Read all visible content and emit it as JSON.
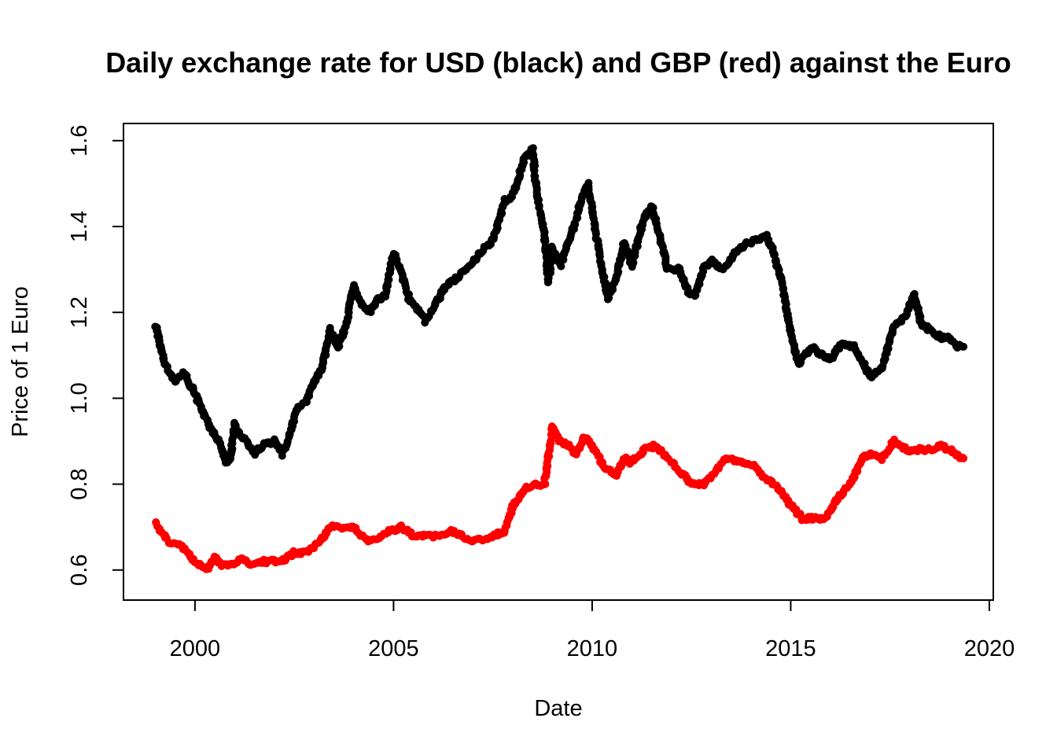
{
  "chart_data": {
    "type": "scatter",
    "title": "Daily exchange rate for USD (black) and GBP (red) against the Euro",
    "xlabel": "Date",
    "ylabel": "Price of 1 Euro",
    "xlim": [
      1998.2,
      2020.1
    ],
    "ylim": [
      0.53,
      1.64
    ],
    "x_ticks": [
      2000,
      2005,
      2010,
      2015,
      2020
    ],
    "x_tick_labels": [
      "2000",
      "2005",
      "2010",
      "2015",
      "2020"
    ],
    "y_ticks": [
      0.6,
      0.8,
      1.0,
      1.2,
      1.4,
      1.6
    ],
    "y_tick_labels": [
      "0.6",
      "0.8",
      "1.0",
      "1.2",
      "1.4",
      "1.6"
    ],
    "grid": false,
    "legend": "none",
    "series": [
      {
        "color": "#000000",
        "x": [
          1999.0,
          1999.1,
          1999.2,
          1999.3,
          1999.5,
          1999.7,
          1999.9,
          2000.0,
          2000.2,
          2000.3,
          2000.4,
          2000.6,
          2000.8,
          2000.9,
          2001.0,
          2001.1,
          2001.3,
          2001.5,
          2001.7,
          2002.0,
          2002.2,
          2002.4,
          2002.6,
          2002.8,
          2003.0,
          2003.2,
          2003.4,
          2003.6,
          2003.8,
          2004.0,
          2004.2,
          2004.4,
          2004.6,
          2004.8,
          2005.0,
          2005.2,
          2005.4,
          2005.6,
          2005.8,
          2006.0,
          2006.3,
          2006.6,
          2006.9,
          2007.2,
          2007.5,
          2007.8,
          2008.0,
          2008.3,
          2008.5,
          2008.6,
          2008.8,
          2008.9,
          2009.0,
          2009.2,
          2009.5,
          2009.8,
          2009.9,
          2010.1,
          2010.4,
          2010.6,
          2010.8,
          2011.0,
          2011.3,
          2011.5,
          2011.7,
          2011.9,
          2012.2,
          2012.4,
          2012.6,
          2012.8,
          2013.0,
          2013.3,
          2013.6,
          2013.9,
          2014.2,
          2014.4,
          2014.6,
          2014.8,
          2015.0,
          2015.2,
          2015.5,
          2015.8,
          2016.0,
          2016.3,
          2016.6,
          2016.9,
          2017.0,
          2017.3,
          2017.6,
          2017.9,
          2018.1,
          2018.3,
          2018.5,
          2018.8,
          2019.0,
          2019.2,
          2019.35
        ],
        "y": [
          1.17,
          1.14,
          1.09,
          1.07,
          1.04,
          1.06,
          1.03,
          1.01,
          0.97,
          0.95,
          0.93,
          0.9,
          0.85,
          0.86,
          0.94,
          0.92,
          0.9,
          0.87,
          0.89,
          0.9,
          0.87,
          0.92,
          0.98,
          0.99,
          1.04,
          1.07,
          1.16,
          1.12,
          1.17,
          1.26,
          1.22,
          1.2,
          1.23,
          1.24,
          1.34,
          1.29,
          1.23,
          1.21,
          1.18,
          1.21,
          1.26,
          1.28,
          1.31,
          1.34,
          1.37,
          1.46,
          1.47,
          1.56,
          1.58,
          1.48,
          1.38,
          1.27,
          1.35,
          1.31,
          1.39,
          1.48,
          1.5,
          1.38,
          1.23,
          1.28,
          1.36,
          1.31,
          1.42,
          1.45,
          1.38,
          1.3,
          1.3,
          1.25,
          1.24,
          1.3,
          1.32,
          1.3,
          1.34,
          1.36,
          1.37,
          1.38,
          1.33,
          1.26,
          1.15,
          1.08,
          1.12,
          1.1,
          1.09,
          1.13,
          1.12,
          1.07,
          1.05,
          1.07,
          1.17,
          1.19,
          1.24,
          1.17,
          1.16,
          1.14,
          1.14,
          1.12,
          1.12
        ]
      },
      {
        "color": "#ff0000",
        "x": [
          1999.0,
          1999.2,
          1999.4,
          1999.6,
          1999.8,
          2000.0,
          2000.3,
          2000.5,
          2000.7,
          2000.9,
          2001.2,
          2001.4,
          2001.6,
          2001.9,
          2002.2,
          2002.5,
          2002.8,
          2003.1,
          2003.4,
          2003.7,
          2004.0,
          2004.3,
          2004.6,
          2004.9,
          2005.2,
          2005.5,
          2005.8,
          2006.1,
          2006.5,
          2006.9,
          2007.2,
          2007.5,
          2007.8,
          2008.0,
          2008.3,
          2008.6,
          2008.8,
          2009.0,
          2009.2,
          2009.4,
          2009.6,
          2009.8,
          2010.0,
          2010.3,
          2010.6,
          2010.8,
          2011.0,
          2011.3,
          2011.6,
          2011.9,
          2012.2,
          2012.5,
          2012.8,
          2013.1,
          2013.4,
          2013.8,
          2014.1,
          2014.4,
          2014.7,
          2015.0,
          2015.3,
          2015.6,
          2015.9,
          2016.2,
          2016.5,
          2016.8,
          2017.0,
          2017.3,
          2017.6,
          2017.9,
          2018.2,
          2018.5,
          2018.8,
          2019.0,
          2019.35
        ],
        "y": [
          0.71,
          0.68,
          0.66,
          0.66,
          0.64,
          0.62,
          0.6,
          0.63,
          0.61,
          0.61,
          0.63,
          0.61,
          0.62,
          0.62,
          0.62,
          0.64,
          0.64,
          0.66,
          0.7,
          0.7,
          0.7,
          0.67,
          0.67,
          0.69,
          0.7,
          0.68,
          0.68,
          0.68,
          0.69,
          0.67,
          0.67,
          0.68,
          0.69,
          0.75,
          0.79,
          0.8,
          0.8,
          0.93,
          0.9,
          0.89,
          0.87,
          0.91,
          0.89,
          0.84,
          0.82,
          0.86,
          0.85,
          0.88,
          0.89,
          0.86,
          0.83,
          0.8,
          0.8,
          0.83,
          0.86,
          0.85,
          0.84,
          0.81,
          0.79,
          0.75,
          0.72,
          0.72,
          0.72,
          0.77,
          0.8,
          0.86,
          0.87,
          0.86,
          0.9,
          0.88,
          0.88,
          0.88,
          0.89,
          0.88,
          0.86
        ]
      }
    ]
  }
}
